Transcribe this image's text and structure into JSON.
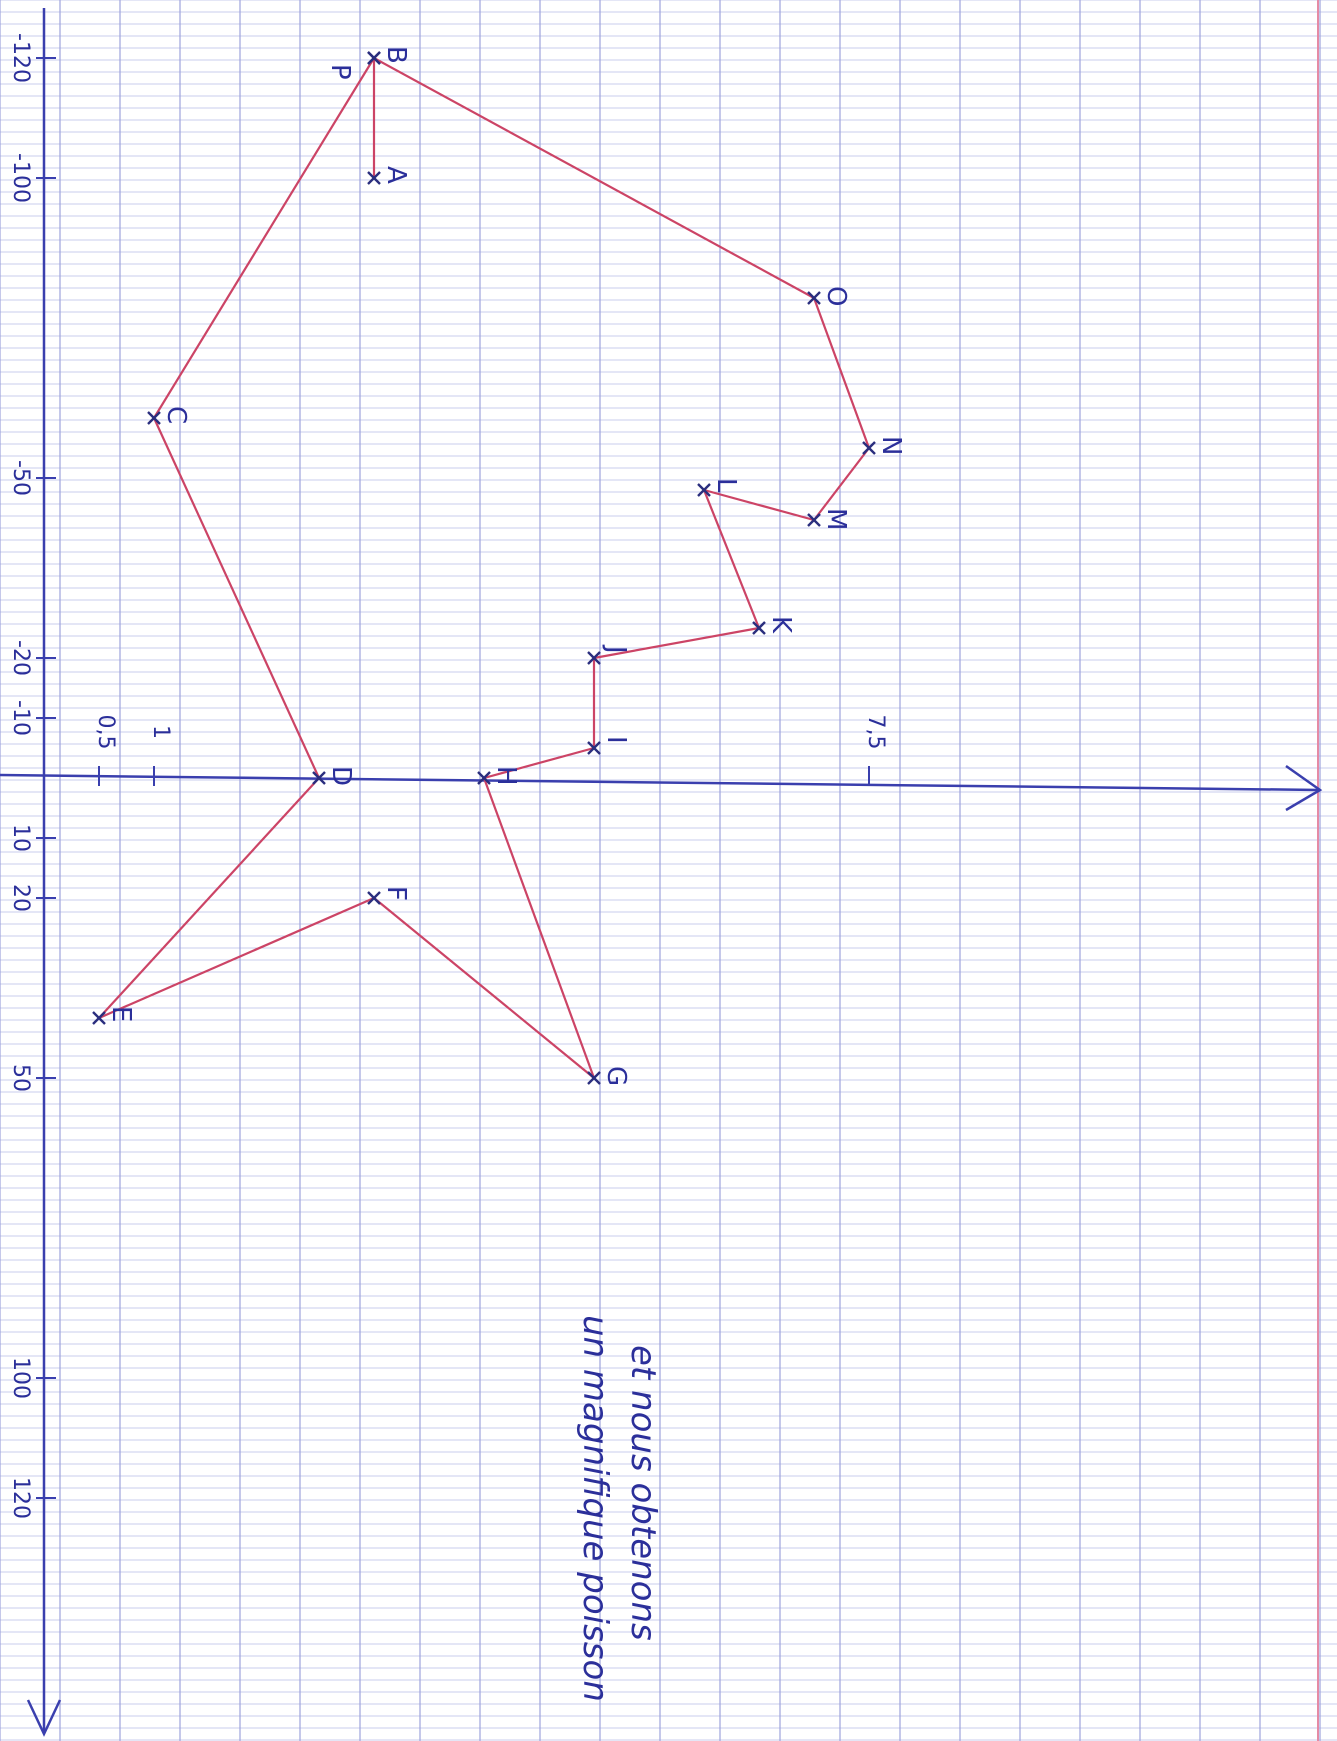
{
  "colors": {
    "paper": "#ffffff",
    "grid_minor": "#c9ccec",
    "grid_major": "#9ea3dc",
    "margin_line": "#e58aa5",
    "axis": "#3a3fae",
    "polygon": "#cc4466",
    "marks": "#2a2e7e",
    "ink": "#2b2f9a"
  },
  "x_axis_ticks": [
    {
      "label": "-120",
      "v": -120
    },
    {
      "label": "-100",
      "v": -100
    },
    {
      "label": "-50",
      "v": -50
    },
    {
      "label": "-20",
      "v": -20
    },
    {
      "label": "-10",
      "v": -10
    },
    {
      "label": "10",
      "v": 10
    },
    {
      "label": "20",
      "v": 20
    },
    {
      "label": "50",
      "v": 50
    },
    {
      "label": "100",
      "v": 100
    },
    {
      "label": "120",
      "v": 120
    }
  ],
  "y_axis_ticks": [
    {
      "label": "0,5",
      "v": 0.5
    },
    {
      "label": "1",
      "v": 1
    },
    {
      "label": "7,5",
      "v": 7.5
    }
  ],
  "points": [
    {
      "label": "A",
      "x": -100,
      "y": 3
    },
    {
      "label": "B",
      "x": -120,
      "y": 3
    },
    {
      "label": "C",
      "x": -60,
      "y": 1
    },
    {
      "label": "D",
      "x": 0,
      "y": 2.5
    },
    {
      "label": "E",
      "x": 40,
      "y": 0.5
    },
    {
      "label": "F",
      "x": 20,
      "y": 3
    },
    {
      "label": "G",
      "x": 50,
      "y": 5
    },
    {
      "label": "H",
      "x": 0,
      "y": 4
    },
    {
      "label": "I",
      "x": -5,
      "y": 5
    },
    {
      "label": "J",
      "x": -20,
      "y": 5
    },
    {
      "label": "K",
      "x": -25,
      "y": 6.5
    },
    {
      "label": "L",
      "x": -48,
      "y": 6
    },
    {
      "label": "M",
      "x": -43,
      "y": 7
    },
    {
      "label": "N",
      "x": -55,
      "y": 7.5
    },
    {
      "label": "O",
      "x": -80,
      "y": 7
    },
    {
      "label": "P",
      "x": -120,
      "y": 3
    }
  ],
  "polygon_order": [
    "A",
    "B",
    "C",
    "D",
    "E",
    "F",
    "G",
    "H",
    "I",
    "J",
    "K",
    "L",
    "M",
    "N",
    "O",
    "P"
  ],
  "note_lines": [
    "et nous obtenons",
    "un magnifique poisson"
  ]
}
